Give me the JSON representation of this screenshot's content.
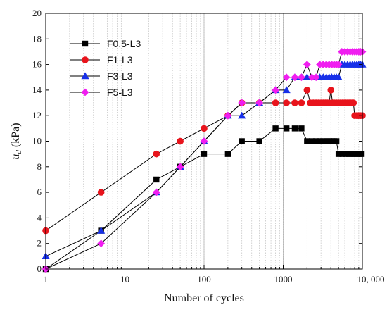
{
  "chart_data": {
    "type": "line",
    "xlabel": "Number of cycles",
    "ylabel_main": "u",
    "ylabel_sub": "d",
    "ylabel_unit": " (kPa)",
    "xscale": "log",
    "xlim": [
      1,
      10000
    ],
    "ylim": [
      0,
      20
    ],
    "x_ticks": [
      1,
      10,
      100,
      1000,
      10000
    ],
    "x_tick_labels": [
      "1",
      "10",
      "100",
      "1000",
      "10, 000"
    ],
    "y_ticks": [
      0,
      2,
      4,
      6,
      8,
      10,
      12,
      14,
      16,
      18,
      20
    ],
    "y_tick_labels": [
      "0",
      "2",
      "4",
      "6",
      "8",
      "10",
      "12",
      "14",
      "16",
      "18",
      "20"
    ],
    "grid": "minor vertical dotted, major vertical solid",
    "legend_position": "top-left",
    "series": [
      {
        "name": "F0.5-L3",
        "color": "#000000",
        "marker": "square",
        "x": [
          1,
          5,
          25,
          50,
          100,
          200,
          300,
          500,
          800,
          1100,
          1400,
          1700,
          2000,
          2300,
          2600,
          2900,
          3200,
          3500,
          3800,
          4100,
          4400,
          4700,
          5000,
          5600,
          6200,
          6800,
          7400,
          8000,
          8600,
          9200,
          9800
        ],
        "y": [
          0,
          3,
          7,
          8,
          9,
          9,
          10,
          10,
          11,
          11,
          11,
          11,
          10,
          10,
          10,
          10,
          10,
          10,
          10,
          10,
          10,
          10,
          9,
          9,
          9,
          9,
          9,
          9,
          9,
          9,
          9
        ]
      },
      {
        "name": "F1-L3",
        "color": "#e8141c",
        "marker": "circle",
        "x": [
          1,
          5,
          25,
          50,
          100,
          200,
          300,
          500,
          800,
          1100,
          1400,
          1700,
          2000,
          2200,
          2400,
          2600,
          2800,
          3000,
          3200,
          3400,
          3600,
          3800,
          4000,
          4200,
          4400,
          4700,
          5000,
          5300,
          5600,
          5900,
          6200,
          6500,
          6800,
          7100,
          7400,
          7700,
          8000,
          8500,
          9000,
          9500,
          10000
        ],
        "y": [
          3,
          6,
          9,
          10,
          11,
          12,
          13,
          13,
          13,
          13,
          13,
          13,
          14,
          13,
          13,
          13,
          13,
          13,
          13,
          13,
          13,
          13,
          14,
          13,
          13,
          13,
          13,
          13,
          13,
          13,
          13,
          13,
          13,
          13,
          13,
          13,
          12,
          12,
          12,
          12,
          12
        ]
      },
      {
        "name": "F3-L3",
        "color": "#1730e8",
        "marker": "triangle",
        "x": [
          1,
          5,
          25,
          50,
          100,
          200,
          300,
          500,
          800,
          1100,
          1400,
          1700,
          2000,
          2300,
          2600,
          2900,
          3200,
          3500,
          3800,
          4100,
          4400,
          4700,
          5000,
          5500,
          6000,
          6500,
          7000,
          7500,
          8000,
          8500,
          9000,
          9500,
          10000
        ],
        "y": [
          1,
          3,
          6,
          8,
          10,
          12,
          12,
          13,
          14,
          14,
          15,
          15,
          15,
          15,
          15,
          15,
          15,
          15,
          15,
          15,
          15,
          15,
          15,
          16,
          16,
          16,
          16,
          16,
          16,
          16,
          16,
          16,
          16
        ]
      },
      {
        "name": "F5-L3",
        "color": "#f01ef0",
        "marker": "diamond",
        "x": [
          1,
          5,
          25,
          50,
          100,
          200,
          300,
          500,
          800,
          1100,
          1400,
          1700,
          2000,
          2300,
          2600,
          2900,
          3200,
          3500,
          3800,
          4100,
          4400,
          4700,
          5000,
          5500,
          6000,
          6500,
          7000,
          7500,
          8000,
          8500,
          9000,
          9500,
          10000
        ],
        "y": [
          0,
          2,
          6,
          8,
          10,
          12,
          13,
          13,
          14,
          15,
          15,
          15,
          16,
          15,
          15,
          16,
          16,
          16,
          16,
          16,
          16,
          16,
          16,
          17,
          17,
          17,
          17,
          17,
          17,
          17,
          17,
          17,
          17
        ]
      }
    ]
  }
}
